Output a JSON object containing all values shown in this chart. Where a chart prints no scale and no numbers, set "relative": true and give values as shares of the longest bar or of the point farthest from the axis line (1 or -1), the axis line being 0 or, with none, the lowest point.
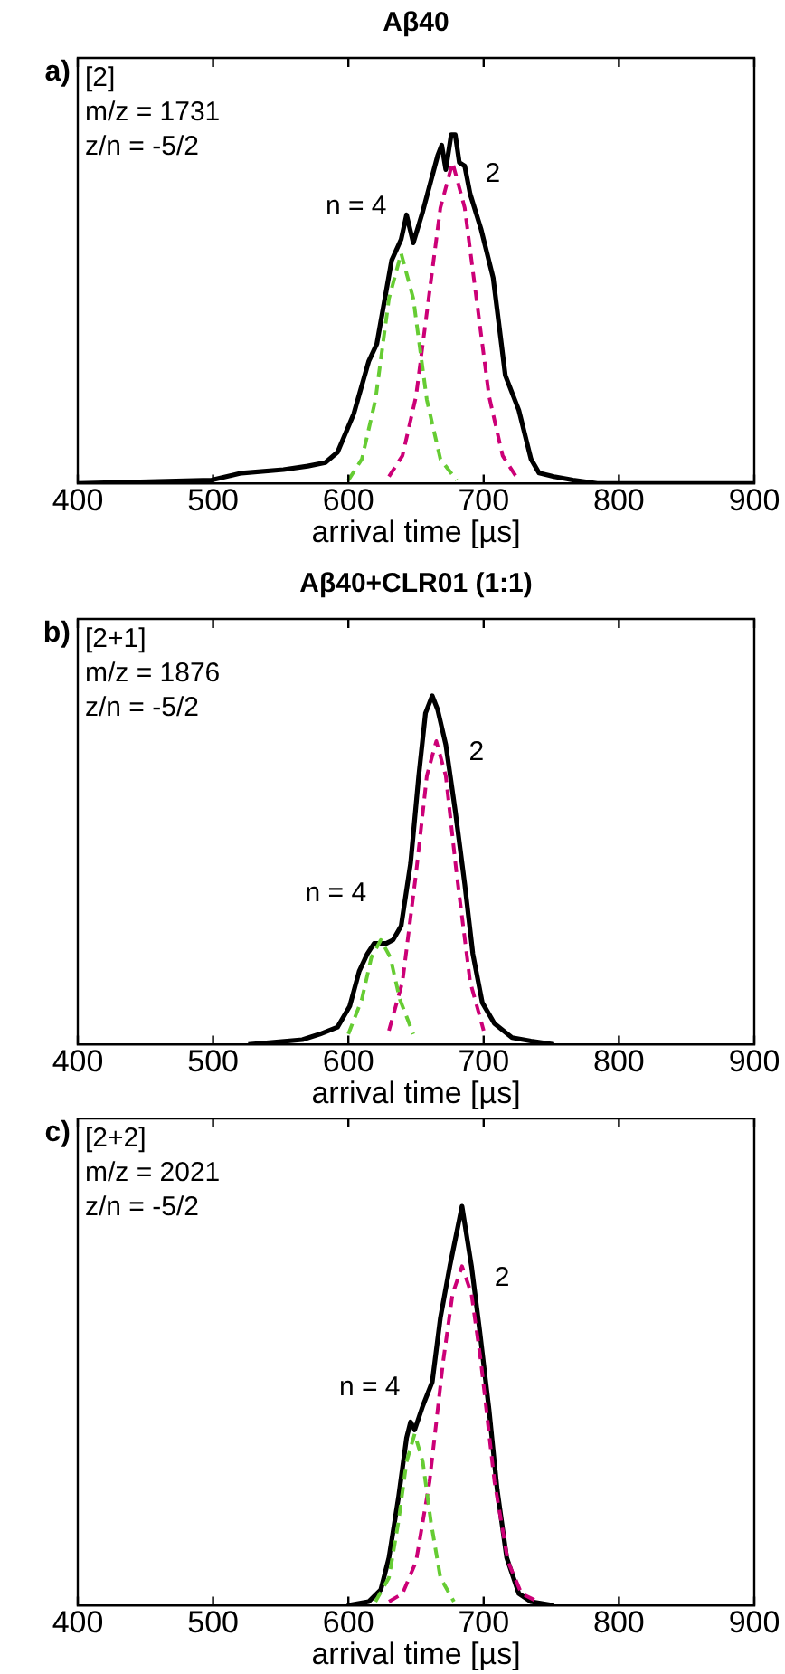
{
  "chart_data": [
    {
      "type": "line",
      "relative": true,
      "title": "Aβ40",
      "xlabel": "arrival time [µs]",
      "xlim": [
        400,
        900
      ],
      "xticks": [
        400,
        500,
        600,
        700,
        800,
        900
      ],
      "legend": false,
      "grid": false,
      "marker": "none",
      "tick_labels": "x",
      "annotations": [
        "a)",
        "[2]",
        "m/z = 1731",
        "z/n = -5/2"
      ],
      "series": [
        {
          "color": "#000000",
          "line_style": "solid",
          "x": [
            400,
            499,
            521,
            552,
            570,
            583,
            592,
            604,
            615,
            621,
            632,
            639,
            643,
            648,
            655,
            666,
            669,
            672,
            676,
            679,
            682,
            686,
            690,
            698,
            707,
            716,
            726,
            735,
            741,
            752,
            766,
            784,
            900
          ],
          "values": [
            0,
            0.01,
            0.03,
            0.04,
            0.05,
            0.06,
            0.09,
            0.2,
            0.35,
            0.4,
            0.64,
            0.7,
            0.77,
            0.69,
            0.78,
            0.94,
            0.97,
            0.9,
            1,
            1,
            0.92,
            0.91,
            0.83,
            0.73,
            0.59,
            0.31,
            0.21,
            0.07,
            0.03,
            0.02,
            0.01,
            0,
            0
          ]
        },
        {
          "name": "n = 4",
          "color": "#66cc33",
          "line_style": "dashed",
          "x": [
            600,
            610,
            620,
            630,
            639,
            648,
            658,
            668,
            680
          ],
          "values": [
            0.01,
            0.07,
            0.24,
            0.53,
            0.66,
            0.53,
            0.24,
            0.07,
            0.01
          ]
        },
        {
          "name": "2",
          "color": "#cc0077",
          "line_style": "dashed",
          "x": [
            630,
            640,
            650,
            660,
            668,
            677,
            686,
            694,
            704,
            714,
            724
          ],
          "values": [
            0.02,
            0.08,
            0.25,
            0.55,
            0.79,
            0.92,
            0.79,
            0.55,
            0.25,
            0.08,
            0.02
          ]
        }
      ]
    },
    {
      "type": "line",
      "relative": true,
      "title": "Aβ40+CLR01 (1:1)",
      "xlabel": "arrival time [µs]",
      "xlim": [
        400,
        900
      ],
      "xticks": [
        400,
        500,
        600,
        700,
        800,
        900
      ],
      "legend": false,
      "grid": false,
      "marker": "none",
      "tick_labels": "x",
      "annotations": [
        "b)",
        "[2+1]",
        "m/z = 1876",
        "z/n = -5/2"
      ],
      "series": [
        {
          "color": "#000000",
          "line_style": "solid",
          "x": [
            526,
            566,
            579,
            592,
            601,
            608,
            614,
            619,
            628,
            633,
            639,
            646,
            652,
            657,
            662,
            666,
            672,
            679,
            686,
            692,
            699,
            708,
            721,
            735,
            752
          ],
          "values": [
            0,
            0.014,
            0.03,
            0.05,
            0.11,
            0.21,
            0.26,
            0.29,
            0.29,
            0.3,
            0.34,
            0.52,
            0.77,
            0.95,
            1,
            0.96,
            0.86,
            0.67,
            0.46,
            0.26,
            0.12,
            0.06,
            0.02,
            0.01,
            0
          ]
        },
        {
          "name": "n = 4",
          "color": "#66cc33",
          "line_style": "dashed",
          "x": [
            600,
            610,
            617,
            624,
            631,
            638,
            648
          ],
          "values": [
            0.03,
            0.13,
            0.25,
            0.3,
            0.25,
            0.13,
            0.03
          ]
        },
        {
          "name": "2",
          "color": "#cc0077",
          "line_style": "dashed",
          "x": [
            630,
            640,
            650,
            658,
            665,
            672,
            680,
            690,
            700
          ],
          "values": [
            0.04,
            0.18,
            0.49,
            0.77,
            0.87,
            0.77,
            0.49,
            0.18,
            0.04
          ]
        }
      ]
    },
    {
      "type": "line",
      "relative": true,
      "xlabel": "arrival time [µs]",
      "xlim": [
        400,
        900
      ],
      "xticks": [
        400,
        500,
        600,
        700,
        800,
        900
      ],
      "legend": false,
      "grid": false,
      "marker": "none",
      "tick_labels": "x",
      "annotations": [
        "c)",
        "[2+2]",
        "m/z = 2021",
        "z/n = -5/2"
      ],
      "series": [
        {
          "color": "#000000",
          "line_style": "solid",
          "x": [
            599,
            615,
            624,
            630,
            637,
            643,
            646,
            649,
            655,
            662,
            668,
            675,
            684,
            691,
            697,
            704,
            710,
            717,
            726,
            735,
            752
          ],
          "values": [
            0,
            0.01,
            0.04,
            0.12,
            0.27,
            0.42,
            0.46,
            0.44,
            0.5,
            0.56,
            0.72,
            0.85,
            1,
            0.85,
            0.69,
            0.49,
            0.29,
            0.12,
            0.03,
            0.01,
            0
          ]
        },
        {
          "name": "n = 4",
          "color": "#66cc33",
          "line_style": "dashed",
          "x": [
            620,
            630,
            637,
            643,
            649,
            655,
            661,
            668,
            678
          ],
          "values": [
            0.01,
            0.07,
            0.21,
            0.36,
            0.43,
            0.36,
            0.21,
            0.07,
            0.01
          ]
        },
        {
          "name": "2",
          "color": "#cc0077",
          "line_style": "dashed",
          "x": [
            630,
            640,
            650,
            660,
            670,
            677,
            684,
            691,
            698,
            708,
            718,
            728,
            740
          ],
          "values": [
            0.01,
            0.03,
            0.11,
            0.31,
            0.61,
            0.78,
            0.85,
            0.78,
            0.61,
            0.31,
            0.11,
            0.03,
            0.01
          ]
        }
      ]
    }
  ]
}
